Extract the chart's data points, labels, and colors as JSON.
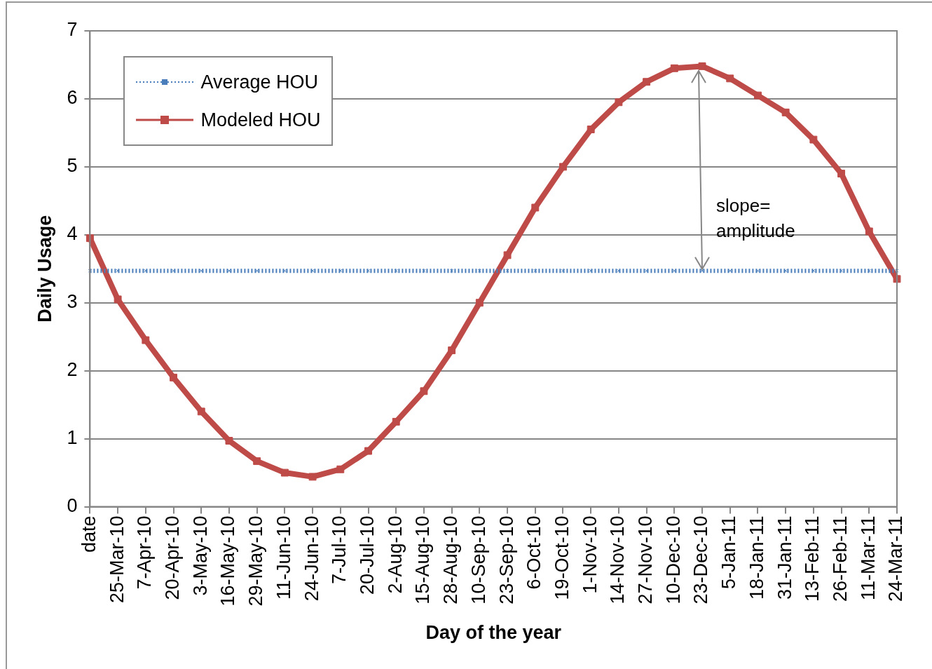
{
  "chart_data": {
    "type": "line",
    "xlabel": "Day of the year",
    "ylabel": "Daily Usage",
    "categories": [
      "date",
      "25-Mar-10",
      "7-Apr-10",
      "20-Apr-10",
      "3-May-10",
      "16-May-10",
      "29-May-10",
      "11-Jun-10",
      "24-Jun-10",
      "7-Jul-10",
      "20-Jul-10",
      "2-Aug-10",
      "15-Aug-10",
      "28-Aug-10",
      "10-Sep-10",
      "23-Sep-10",
      "6-Oct-10",
      "19-Oct-10",
      "1-Nov-10",
      "14-Nov-10",
      "27-Nov-10",
      "10-Dec-10",
      "23-Dec-10",
      "5-Jan-11",
      "18-Jan-11",
      "31-Jan-11",
      "13-Feb-11",
      "26-Feb-11",
      "11-Mar-11",
      "24-Mar-11"
    ],
    "series": [
      {
        "name": "Average HOU",
        "color": "#4a7ebb",
        "line_style": "dotted",
        "marker": "cross",
        "values": [
          3.47,
          3.47,
          3.47,
          3.47,
          3.47,
          3.47,
          3.47,
          3.47,
          3.47,
          3.47,
          3.47,
          3.47,
          3.47,
          3.47,
          3.47,
          3.47,
          3.47,
          3.47,
          3.47,
          3.47,
          3.47,
          3.47,
          3.47,
          3.47,
          3.47,
          3.47,
          3.47,
          3.47,
          3.47,
          3.47
        ]
      },
      {
        "name": "Modeled HOU",
        "color": "#be4b48",
        "line_style": "solid",
        "marker": "square",
        "values": [
          3.95,
          3.05,
          2.45,
          1.9,
          1.4,
          0.97,
          0.67,
          0.5,
          0.44,
          0.55,
          0.82,
          1.25,
          1.7,
          2.3,
          3.0,
          3.7,
          4.4,
          5.0,
          5.55,
          5.95,
          6.25,
          6.45,
          6.48,
          6.3,
          6.05,
          5.8,
          5.4,
          4.9,
          4.05,
          3.35
        ]
      }
    ],
    "ylim": [
      0,
      7
    ],
    "yticks": [
      0,
      1,
      2,
      3,
      4,
      5,
      6,
      7
    ],
    "grid": "y",
    "legend": "top left",
    "annotations": [
      "slope= amplitude"
    ]
  }
}
